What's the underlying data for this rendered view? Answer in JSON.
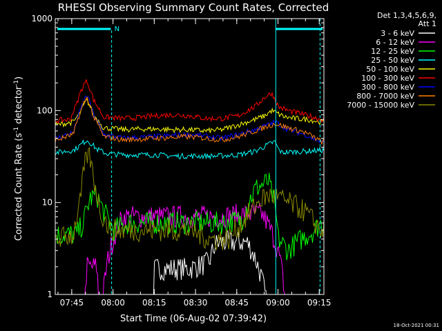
{
  "chart_data": {
    "type": "line",
    "title": "RHESSI Observing Summary Count Rates, Corrected",
    "xlabel": "Start Time (06-Aug-02 07:39:42)",
    "ylabel": "Corrected Count Rate (s⁻¹ detector⁻¹)",
    "ylabel_parts": {
      "main": "Corrected Count Rate (s",
      "exp1": "-1",
      "mid": " detector",
      "exp2": "-1",
      "end": ")"
    },
    "y_scale": "log",
    "ylim": [
      1,
      1000
    ],
    "y_ticks": [
      {
        "value": 1,
        "label": "1"
      },
      {
        "value": 10,
        "label": "10"
      },
      {
        "value": 100,
        "label": "100"
      },
      {
        "value": 1000,
        "label": "1000"
      }
    ],
    "x_range_minutes": [
      -0.7,
      80
    ],
    "x_ticks": [
      {
        "minute": 5.3,
        "label": "07:45"
      },
      {
        "minute": 20.3,
        "label": "08:00"
      },
      {
        "minute": 35.3,
        "label": "08:15"
      },
      {
        "minute": 50.3,
        "label": "08:30"
      },
      {
        "minute": 65.3,
        "label": "08:45"
      },
      {
        "minute": 80.3,
        "label": "09:00"
      },
      {
        "minute": 95.3,
        "label": "09:15"
      }
    ],
    "legend_position": "top-right",
    "legend_header": [
      "Det 1,3,4,5,6,9,",
      "Att 1"
    ],
    "timestamp": "18-Oct-2021 00:31",
    "night_marker": "N",
    "series": [
      {
        "name": "3 - 6 keV",
        "color": "#ffffff",
        "x": [
          0,
          29,
          29.5,
          40,
          46,
          48,
          50,
          52,
          57.5,
          65,
          70
        ],
        "y": [
          0,
          0,
          1.9,
          1.9,
          2.2,
          3.5,
          3.7,
          3.7,
          3.7,
          0,
          0
        ]
      },
      {
        "name": "6 - 12 keV",
        "color": "#ff00ff",
        "x": [
          0,
          8,
          9,
          12,
          13,
          20,
          30,
          40,
          50,
          58,
          62,
          70
        ],
        "y": [
          0,
          0,
          2,
          2,
          0,
          7,
          7,
          7,
          7,
          7.5,
          7.5,
          0
        ]
      },
      {
        "name": "12 - 25 keV",
        "color": "#00ff00",
        "x": [
          0,
          6,
          8,
          10,
          12,
          14,
          17,
          22,
          30,
          40,
          50,
          56,
          58,
          60,
          64,
          67,
          70,
          78,
          80
        ],
        "y": [
          4.5,
          4.5,
          6,
          11,
          12,
          8,
          5,
          6,
          6,
          6,
          6,
          6.5,
          10,
          14,
          17,
          4,
          3,
          5,
          6
        ]
      },
      {
        "name": "25 - 50 keV",
        "color": "#00ffff",
        "x": [
          0,
          5,
          7,
          9,
          12,
          15,
          20,
          30,
          35,
          40,
          48,
          55,
          60,
          66,
          67,
          68,
          75,
          80
        ],
        "y": [
          35,
          37,
          42,
          48,
          38,
          34,
          33,
          33,
          32,
          32,
          32,
          33,
          36,
          46,
          38,
          35,
          36,
          37
        ]
      },
      {
        "name": "50 - 100 keV",
        "color": "#ffff00",
        "x": [
          0,
          5,
          7,
          9,
          11,
          14,
          20,
          25,
          30,
          35,
          40,
          45,
          50,
          55,
          60,
          63,
          65,
          67,
          69,
          72,
          76,
          80
        ],
        "y": [
          70,
          75,
          95,
          130,
          90,
          65,
          62,
          63,
          63,
          62,
          62,
          60,
          62,
          70,
          80,
          88,
          100,
          92,
          85,
          82,
          80,
          75
        ]
      },
      {
        "name": "100 - 300 keV",
        "color": "#ff0000",
        "x": [
          0,
          4,
          6,
          8,
          9,
          11,
          14,
          20,
          25,
          30,
          35,
          40,
          45,
          50,
          55,
          60,
          63,
          65,
          67,
          70,
          75,
          80
        ],
        "y": [
          78,
          80,
          120,
          190,
          210,
          130,
          85,
          82,
          84,
          88,
          90,
          88,
          82,
          82,
          88,
          110,
          140,
          155,
          110,
          100,
          90,
          80
        ]
      },
      {
        "name": "300 - 800 keV",
        "color": "#0000ff",
        "x": [
          0,
          5,
          7,
          9,
          11,
          14,
          20,
          30,
          40,
          50,
          55,
          60,
          64,
          66,
          70,
          75,
          80
        ],
        "y": [
          50,
          58,
          100,
          150,
          90,
          55,
          50,
          52,
          55,
          50,
          55,
          62,
          70,
          75,
          62,
          55,
          45
        ]
      },
      {
        "name": "800 - 7000 keV",
        "color": "#ff8000",
        "x": [
          0,
          5,
          7,
          9,
          11,
          14,
          20,
          30,
          40,
          50,
          55,
          60,
          64,
          66,
          70,
          75,
          80
        ],
        "y": [
          48,
          55,
          95,
          140,
          85,
          52,
          48,
          50,
          52,
          48,
          52,
          60,
          68,
          72,
          65,
          58,
          46
        ]
      },
      {
        "name": "7000 - 15000 keV",
        "color": "#8a8a00",
        "x": [
          0,
          5,
          7,
          8,
          9,
          10,
          11,
          13,
          16,
          20,
          30,
          40,
          46,
          52,
          56,
          60,
          62,
          65,
          70,
          75,
          78,
          80
        ],
        "y": [
          4,
          4.5,
          10,
          20,
          33,
          30,
          18,
          8,
          5,
          5,
          5,
          5,
          4,
          4,
          6,
          9,
          11,
          12,
          10,
          8,
          6,
          5
        ]
      }
    ]
  }
}
